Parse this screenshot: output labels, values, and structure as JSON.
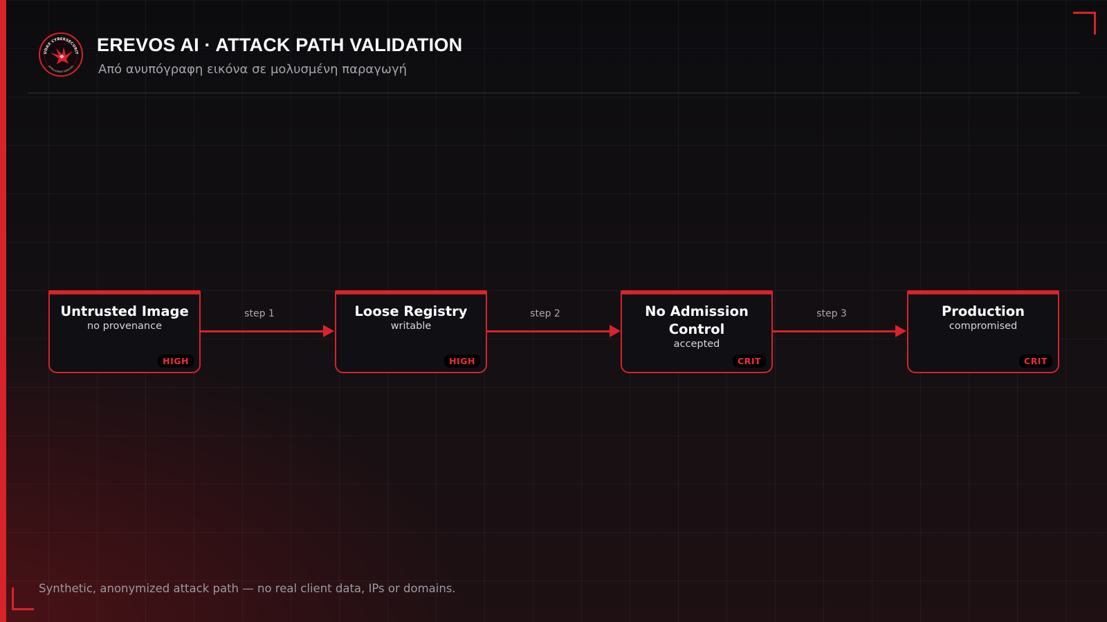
{
  "header": {
    "logo_icon": "audax-eagle-seal-icon",
    "logo_ring_top": "AUDAX CYBERSECURITY",
    "logo_ring_bottom": "INTELLIGENCE SERVICES",
    "title": "EREVOS AI · ATTACK PATH VALIDATION",
    "subtitle": "Από ανυπόγραφη εικόνα σε μολυσμένη παραγωγή"
  },
  "diagram": {
    "nodes": [
      {
        "title": "Untrusted Image",
        "subtitle": "no provenance",
        "severity": "HIGH"
      },
      {
        "title": "Loose Registry",
        "subtitle": "writable",
        "severity": "HIGH"
      },
      {
        "title": "No Admission Control",
        "subtitle": "accepted",
        "severity": "CRIT"
      },
      {
        "title": "Production",
        "subtitle": "compromised",
        "severity": "CRIT"
      }
    ],
    "edges": [
      {
        "from": 0,
        "to": 1,
        "label": "step 1"
      },
      {
        "from": 1,
        "to": 2,
        "label": "step 2"
      },
      {
        "from": 2,
        "to": 3,
        "label": "step 3"
      }
    ]
  },
  "footer": {
    "note": "Synthetic, anonymized attack path — no real client data, IPs or domains."
  },
  "colors": {
    "accent": "#d8232a",
    "background": "#0c0c10",
    "node_fill": "#0f0f14",
    "badge_text": "#ef2e36"
  }
}
